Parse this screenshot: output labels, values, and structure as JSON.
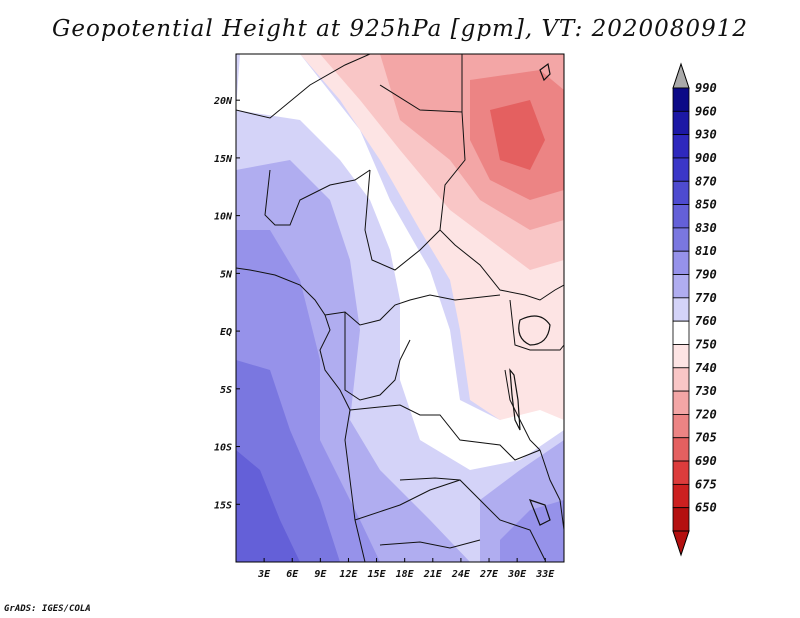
{
  "title": "Geopotential Height at 925hPa [gpm], VT: 2020080912",
  "credit": "GrADS: IGES/COLA",
  "map": {
    "variable": "Geopotential Height",
    "level": "925hPa",
    "units": "gpm",
    "valid_time": "2020080912",
    "lon_range": [
      0,
      35
    ],
    "lat_range": [
      -20,
      24
    ],
    "lon_ticks": [
      {
        "value": 3,
        "label": "3E"
      },
      {
        "value": 6,
        "label": "6E"
      },
      {
        "value": 9,
        "label": "9E"
      },
      {
        "value": 12,
        "label": "12E"
      },
      {
        "value": 15,
        "label": "15E"
      },
      {
        "value": 18,
        "label": "18E"
      },
      {
        "value": 21,
        "label": "21E"
      },
      {
        "value": 24,
        "label": "24E"
      },
      {
        "value": 27,
        "label": "27E"
      },
      {
        "value": 30,
        "label": "30E"
      },
      {
        "value": 33,
        "label": "33E"
      }
    ],
    "lat_ticks": [
      {
        "value": 20,
        "label": "20N"
      },
      {
        "value": 15,
        "label": "15N"
      },
      {
        "value": 10,
        "label": "10N"
      },
      {
        "value": 5,
        "label": "5N"
      },
      {
        "value": 0,
        "label": "EQ"
      },
      {
        "value": -5,
        "label": "5S"
      },
      {
        "value": -10,
        "label": "10S"
      },
      {
        "value": -15,
        "label": "15S"
      }
    ]
  },
  "colorbar": {
    "levels": [
      "990",
      "960",
      "930",
      "900",
      "870",
      "850",
      "830",
      "810",
      "790",
      "770",
      "760",
      "750",
      "740",
      "730",
      "720",
      "705",
      "690",
      "675",
      "650"
    ],
    "colors": [
      "#0c0a87",
      "#1c18a5",
      "#2e28bd",
      "#3b37c8",
      "#4e4bd0",
      "#6460d8",
      "#7a77e0",
      "#9692ea",
      "#b0adf0",
      "#d4d3f8",
      "#ffffff",
      "#fde4e4",
      "#f9c6c6",
      "#f3a6a6",
      "#ec8484",
      "#e46060",
      "#dc3c3c",
      "#cc2020",
      "#b41010"
    ],
    "top_arrow_color": "#aaaaaa",
    "bottom_arrow_color": "#b41010"
  }
}
